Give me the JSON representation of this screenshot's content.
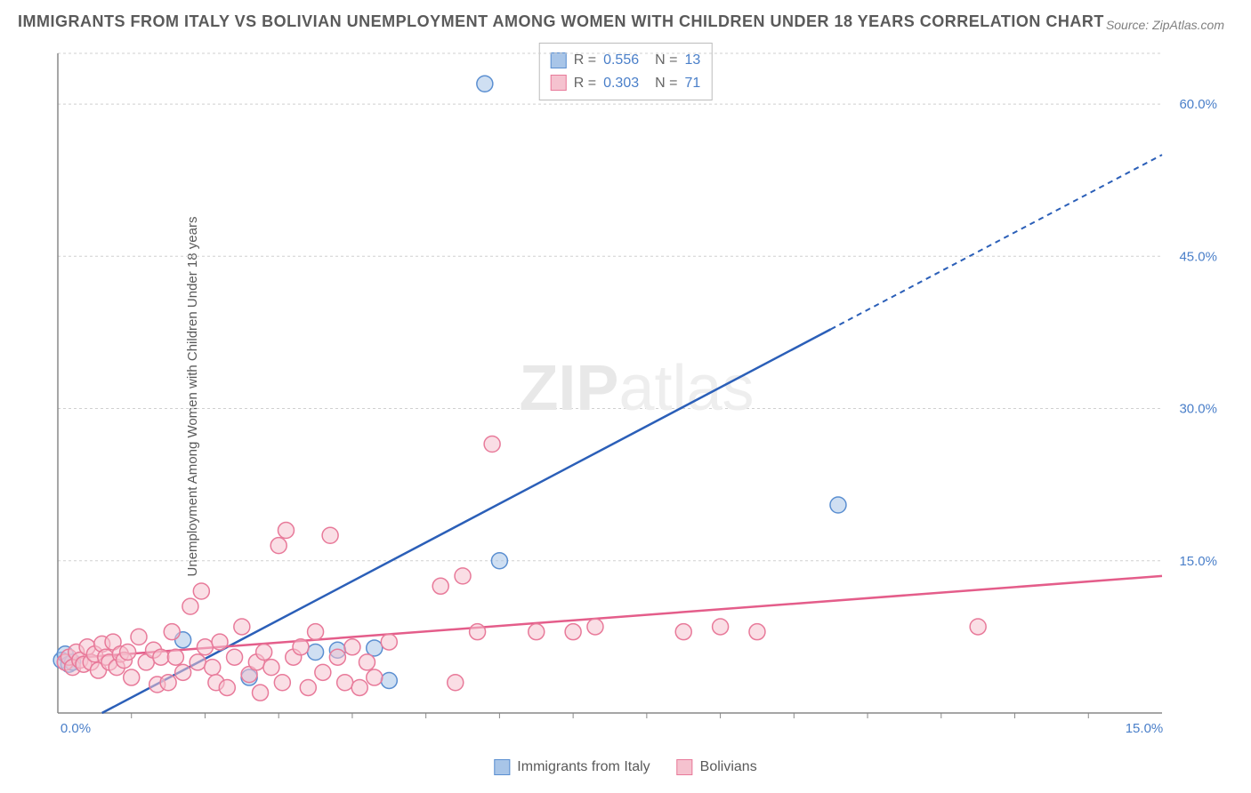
{
  "title": "IMMIGRANTS FROM ITALY VS BOLIVIAN UNEMPLOYMENT AMONG WOMEN WITH CHILDREN UNDER 18 YEARS CORRELATION CHART",
  "source": "Source: ZipAtlas.com",
  "ylabel": "Unemployment Among Women with Children Under 18 years",
  "watermark": {
    "left": "ZIP",
    "right": "atlas"
  },
  "chart": {
    "type": "scatter",
    "background_color": "#ffffff",
    "grid_color": "#d0d0d0",
    "axis_color": "#888888",
    "xlim": [
      0,
      15
    ],
    "ylim": [
      0,
      65
    ],
    "xtick_labels": [
      "0.0%",
      "15.0%"
    ],
    "ytick_positions": [
      15,
      30,
      45,
      60
    ],
    "ytick_labels": [
      "15.0%",
      "30.0%",
      "45.0%",
      "60.0%"
    ],
    "x_minor_ticks": [
      1,
      2,
      3,
      4,
      5,
      6,
      7,
      8,
      9,
      10,
      11,
      12,
      13,
      14
    ],
    "series": [
      {
        "name": "Immigrants from Italy",
        "key": "italy",
        "marker_color": "#a8c5e8",
        "marker_border": "#5b8fd1",
        "line_color": "#2b5fb8",
        "marker_radius": 9,
        "fill_opacity": 0.55,
        "R": "0.556",
        "N": "13",
        "trend": {
          "x1": 0.6,
          "y1": 0,
          "x2": 15,
          "y2": 55,
          "solid_until_x": 10.5
        },
        "points": [
          [
            0.05,
            5.2
          ],
          [
            0.1,
            5.8
          ],
          [
            0.15,
            4.8
          ],
          [
            0.2,
            5.0
          ],
          [
            1.7,
            7.2
          ],
          [
            2.6,
            3.5
          ],
          [
            3.5,
            6.0
          ],
          [
            3.8,
            6.2
          ],
          [
            4.3,
            6.4
          ],
          [
            4.5,
            3.2
          ],
          [
            6.0,
            15.0
          ],
          [
            5.8,
            62.0
          ],
          [
            10.6,
            20.5
          ]
        ]
      },
      {
        "name": "Bolivians",
        "key": "bolivia",
        "marker_color": "#f5c2cf",
        "marker_border": "#e87a9a",
        "line_color": "#e45d8a",
        "marker_radius": 9,
        "fill_opacity": 0.55,
        "R": "0.303",
        "N": "71",
        "trend": {
          "x1": 0,
          "y1": 5.3,
          "x2": 15,
          "y2": 13.5,
          "solid_until_x": 15
        },
        "points": [
          [
            0.1,
            5.0
          ],
          [
            0.15,
            5.5
          ],
          [
            0.2,
            4.5
          ],
          [
            0.25,
            6.0
          ],
          [
            0.3,
            5.2
          ],
          [
            0.35,
            4.8
          ],
          [
            0.4,
            6.5
          ],
          [
            0.45,
            5.0
          ],
          [
            0.5,
            5.8
          ],
          [
            0.55,
            4.2
          ],
          [
            0.6,
            6.8
          ],
          [
            0.65,
            5.5
          ],
          [
            0.7,
            5.0
          ],
          [
            0.75,
            7.0
          ],
          [
            0.8,
            4.5
          ],
          [
            0.85,
            5.8
          ],
          [
            0.9,
            5.2
          ],
          [
            0.95,
            6.0
          ],
          [
            1.0,
            3.5
          ],
          [
            1.1,
            7.5
          ],
          [
            1.2,
            5.0
          ],
          [
            1.3,
            6.2
          ],
          [
            1.35,
            2.8
          ],
          [
            1.4,
            5.5
          ],
          [
            1.5,
            3.0
          ],
          [
            1.55,
            8.0
          ],
          [
            1.6,
            5.5
          ],
          [
            1.7,
            4.0
          ],
          [
            1.8,
            10.5
          ],
          [
            1.9,
            5.0
          ],
          [
            1.95,
            12.0
          ],
          [
            2.0,
            6.5
          ],
          [
            2.1,
            4.5
          ],
          [
            2.15,
            3.0
          ],
          [
            2.2,
            7.0
          ],
          [
            2.3,
            2.5
          ],
          [
            2.4,
            5.5
          ],
          [
            2.5,
            8.5
          ],
          [
            2.6,
            3.8
          ],
          [
            2.7,
            5.0
          ],
          [
            2.75,
            2.0
          ],
          [
            2.8,
            6.0
          ],
          [
            2.9,
            4.5
          ],
          [
            3.0,
            16.5
          ],
          [
            3.1,
            18.0
          ],
          [
            3.05,
            3.0
          ],
          [
            3.2,
            5.5
          ],
          [
            3.3,
            6.5
          ],
          [
            3.4,
            2.5
          ],
          [
            3.5,
            8.0
          ],
          [
            3.6,
            4.0
          ],
          [
            3.7,
            17.5
          ],
          [
            3.8,
            5.5
          ],
          [
            3.9,
            3.0
          ],
          [
            4.0,
            6.5
          ],
          [
            4.1,
            2.5
          ],
          [
            4.2,
            5.0
          ],
          [
            4.3,
            3.5
          ],
          [
            4.5,
            7.0
          ],
          [
            5.2,
            12.5
          ],
          [
            5.5,
            13.5
          ],
          [
            5.4,
            3.0
          ],
          [
            5.7,
            8.0
          ],
          [
            5.9,
            26.5
          ],
          [
            7.0,
            8.0
          ],
          [
            7.3,
            8.5
          ],
          [
            8.5,
            8.0
          ],
          [
            9.0,
            8.5
          ],
          [
            9.5,
            8.0
          ],
          [
            12.5,
            8.5
          ],
          [
            6.5,
            8.0
          ]
        ]
      }
    ]
  },
  "bottom_legend": {
    "items": [
      {
        "label": "Immigrants from Italy",
        "swatch_fill": "#a8c5e8",
        "swatch_border": "#5b8fd1"
      },
      {
        "label": "Bolivians",
        "swatch_fill": "#f5c2cf",
        "swatch_border": "#e87a9a"
      }
    ]
  }
}
